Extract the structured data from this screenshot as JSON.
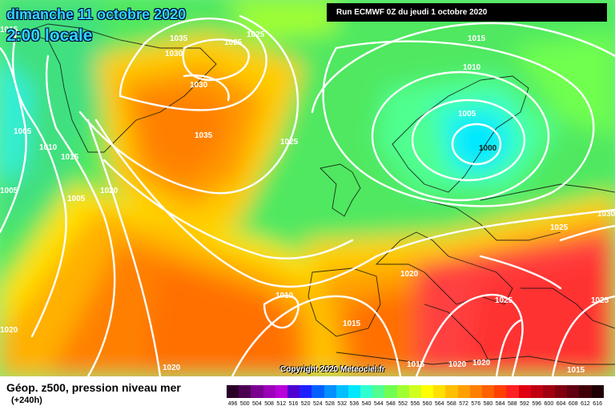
{
  "header": {
    "date": "dimanche 11 octobre 2020",
    "time": "2:00 locale",
    "run": "Run ECMWF 0Z du jeudi 1 octobre 2020"
  },
  "footer": {
    "copyright": "Copyright 2020 Meteociel.fr",
    "field": "Géop. z500, pression niveau mer",
    "range": "(+240h)"
  },
  "legend": {
    "values": [
      "496",
      "500",
      "504",
      "508",
      "512",
      "516",
      "520",
      "524",
      "528",
      "532",
      "536",
      "540",
      "544",
      "548",
      "552",
      "556",
      "560",
      "564",
      "568",
      "572",
      "576",
      "580",
      "584",
      "588",
      "592",
      "596",
      "600",
      "604",
      "608",
      "612",
      "616"
    ],
    "colors": [
      "#2a0028",
      "#4b0050",
      "#7a0090",
      "#9b00b8",
      "#b800d8",
      "#5000d0",
      "#2020ff",
      "#0060ff",
      "#0090ff",
      "#00c0ff",
      "#00e8ff",
      "#30ffd0",
      "#50ff90",
      "#70ff50",
      "#a0ff30",
      "#d0ff20",
      "#ffff00",
      "#ffe000",
      "#ffc000",
      "#ffa000",
      "#ff8000",
      "#ff6000",
      "#ff4000",
      "#ff2020",
      "#e00010",
      "#c00010",
      "#a00010",
      "#800010",
      "#600010",
      "#400008",
      "#200004"
    ]
  },
  "pressure_labels": [
    "1015",
    "1035",
    "1030",
    "1025",
    "1025",
    "1030",
    "1005",
    "1010",
    "1015",
    "1005",
    "1020",
    "1005",
    "1035",
    "1025",
    "1015",
    "1010",
    "1005",
    "1000",
    "1030",
    "1025",
    "1020",
    "1010",
    "1015",
    "1025",
    "1025",
    "1020",
    "1015",
    "1020",
    "1020",
    "1015"
  ]
}
